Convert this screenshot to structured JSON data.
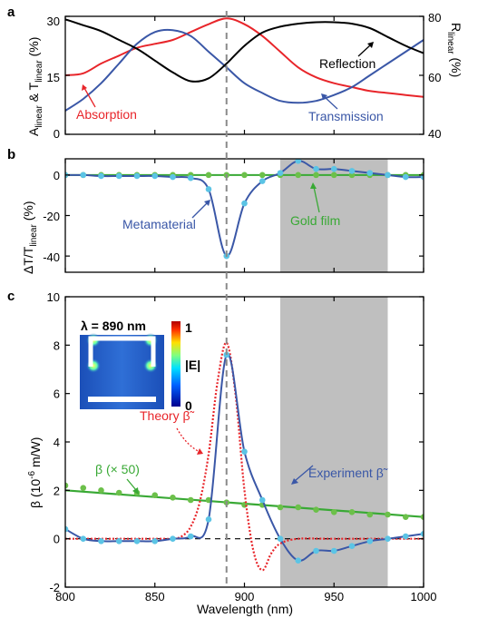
{
  "chart_data": [
    {
      "type": "line",
      "panel_label": "a",
      "x_range": [
        800,
        1000
      ],
      "ylabel_left_main": "A",
      "ylabel_left_sub1": "linear",
      "ylabel_left_mid": " & T",
      "ylabel_left_sub2": "linear",
      "ylabel_left_unit": " (%)",
      "ylim_left": [
        0,
        30
      ],
      "yticks_left": [
        "0",
        "15",
        "30"
      ],
      "ylabel_right_main": "R",
      "ylabel_right_sub": "linear",
      "ylabel_right_unit": " (%)",
      "ylim_right": [
        40,
        80
      ],
      "yticks_right": [
        "40",
        "60",
        "80"
      ],
      "series": [
        {
          "name": "Absorption",
          "axis": "left",
          "color": "#e8252a",
          "x": [
            800,
            810,
            820,
            830,
            840,
            850,
            860,
            870,
            880,
            890,
            900,
            910,
            920,
            930,
            940,
            950,
            960,
            970,
            980,
            990,
            1000
          ],
          "y": [
            15,
            15.5,
            18,
            20,
            22,
            23,
            24,
            26,
            28,
            29.5,
            28,
            25,
            21,
            17,
            14.5,
            13,
            12,
            11,
            10.5,
            10,
            9.5
          ]
        },
        {
          "name": "Transmission",
          "axis": "left",
          "color": "#3a57a7",
          "x": [
            800,
            810,
            820,
            830,
            840,
            850,
            860,
            870,
            880,
            890,
            900,
            910,
            920,
            930,
            940,
            950,
            960,
            970,
            980,
            990,
            1000
          ],
          "y": [
            6,
            9,
            13,
            18,
            23,
            26,
            26.5,
            25,
            21,
            17,
            13,
            10.5,
            8.5,
            8,
            8.5,
            10,
            12,
            15,
            18,
            21,
            24
          ]
        },
        {
          "name": "Reflection",
          "axis": "right",
          "color": "#000000",
          "x": [
            800,
            810,
            820,
            830,
            840,
            850,
            860,
            870,
            880,
            890,
            900,
            910,
            920,
            930,
            940,
            950,
            960,
            970,
            980,
            990,
            1000
          ],
          "y": [
            79,
            77,
            75,
            72,
            69,
            65,
            61,
            58,
            59,
            64,
            70,
            74.5,
            76.5,
            77.5,
            78,
            78,
            77.5,
            76,
            73,
            70,
            67.5
          ]
        }
      ],
      "annotations": [
        "Absorption",
        "Transmission",
        "Reflection"
      ]
    },
    {
      "type": "line",
      "panel_label": "b",
      "x_range": [
        800,
        1000
      ],
      "ylabel_main": "ΔT/T",
      "ylabel_sub": "linear",
      "ylabel_unit": " (%)",
      "ylim": [
        -48,
        8
      ],
      "yticks": [
        "0",
        "-20",
        "-40"
      ],
      "shaded_range": [
        920,
        980
      ],
      "series": [
        {
          "name": "Metamaterial",
          "color": "#3a57a7",
          "marker_color": "#5bc4e5",
          "x": [
            800,
            810,
            820,
            830,
            840,
            850,
            860,
            870,
            880,
            890,
            900,
            910,
            920,
            930,
            940,
            950,
            960,
            970,
            980,
            990,
            1000
          ],
          "y": [
            0,
            0,
            -0.5,
            -0.5,
            -0.5,
            -0.5,
            -1,
            -1.5,
            -7,
            -40,
            -14,
            -3,
            1,
            7,
            3,
            3,
            2,
            1,
            0,
            -1,
            -1
          ]
        },
        {
          "name": "Gold film",
          "color": "#39a935",
          "marker_color": "#6cc04a",
          "x": [
            800,
            810,
            820,
            830,
            840,
            850,
            860,
            870,
            880,
            890,
            900,
            910,
            920,
            930,
            940,
            950,
            960,
            970,
            980,
            990,
            1000
          ],
          "y": [
            0,
            0,
            0,
            0,
            0,
            0,
            0,
            0,
            0,
            0,
            0,
            0,
            0,
            0,
            0,
            0,
            0,
            0,
            0,
            0,
            0
          ]
        }
      ],
      "annotations": [
        "Metamaterial",
        "Gold film"
      ]
    },
    {
      "type": "line",
      "panel_label": "c",
      "x_range": [
        800,
        1000
      ],
      "xlabel": "Wavelength (nm)",
      "xticks": [
        "800",
        "850",
        "900",
        "950",
        "1000"
      ],
      "ylabel_main": "β (10",
      "ylabel_sup": "-6",
      "ylabel_unit": " m/W)",
      "ylim": [
        -2,
        10
      ],
      "yticks": [
        "-2",
        "0",
        "2",
        "4",
        "6",
        "8",
        "10"
      ],
      "shaded_range": [
        920,
        980
      ],
      "dashed_vertical_x": 890,
      "series": [
        {
          "name": "Experiment β̃",
          "color": "#3a57a7",
          "marker_color": "#5bc4e5",
          "x": [
            800,
            810,
            820,
            830,
            840,
            850,
            860,
            870,
            880,
            890,
            900,
            910,
            920,
            930,
            940,
            950,
            960,
            970,
            980,
            990,
            1000
          ],
          "y": [
            0.4,
            0,
            -0.1,
            -0.1,
            -0.1,
            -0.1,
            0,
            0.1,
            0.8,
            7.6,
            3.6,
            1.6,
            0,
            -0.9,
            -0.5,
            -0.5,
            -0.3,
            -0.1,
            0,
            0.1,
            0.2
          ]
        },
        {
          "name": "Theory β̃",
          "color": "#e8252a",
          "x": [
            800,
            850,
            860,
            865,
            870,
            875,
            880,
            885,
            890,
            895,
            900,
            905,
            910,
            915,
            920,
            930,
            950,
            1000
          ],
          "y": [
            0,
            0,
            0,
            0.1,
            0.5,
            1.5,
            3.5,
            6.5,
            8.1,
            6,
            2,
            -0.5,
            -1.3,
            -0.6,
            -0.2,
            0,
            0,
            0
          ]
        },
        {
          "name": "β (× 50)",
          "color": "#39a935",
          "marker_color": "#6cc04a",
          "x": [
            800,
            810,
            820,
            830,
            840,
            850,
            860,
            870,
            880,
            890,
            900,
            910,
            920,
            930,
            940,
            950,
            960,
            970,
            980,
            990,
            1000
          ],
          "y": [
            2.2,
            2.1,
            2.0,
            1.9,
            1.9,
            1.8,
            1.7,
            1.6,
            1.6,
            1.5,
            1.4,
            1.4,
            1.3,
            1.3,
            1.2,
            1.1,
            1.1,
            1.0,
            1.0,
            0.9,
            0.9
          ],
          "fit_line": [
            2.0,
            0.9
          ]
        }
      ],
      "annotations": [
        "Experiment β̃",
        "Theory β̃",
        "β (× 50)"
      ],
      "inset": {
        "title": "λ = 890 nm",
        "colorbar_max": "1",
        "colorbar_min": "0",
        "colorbar_label": "|E|"
      }
    }
  ]
}
